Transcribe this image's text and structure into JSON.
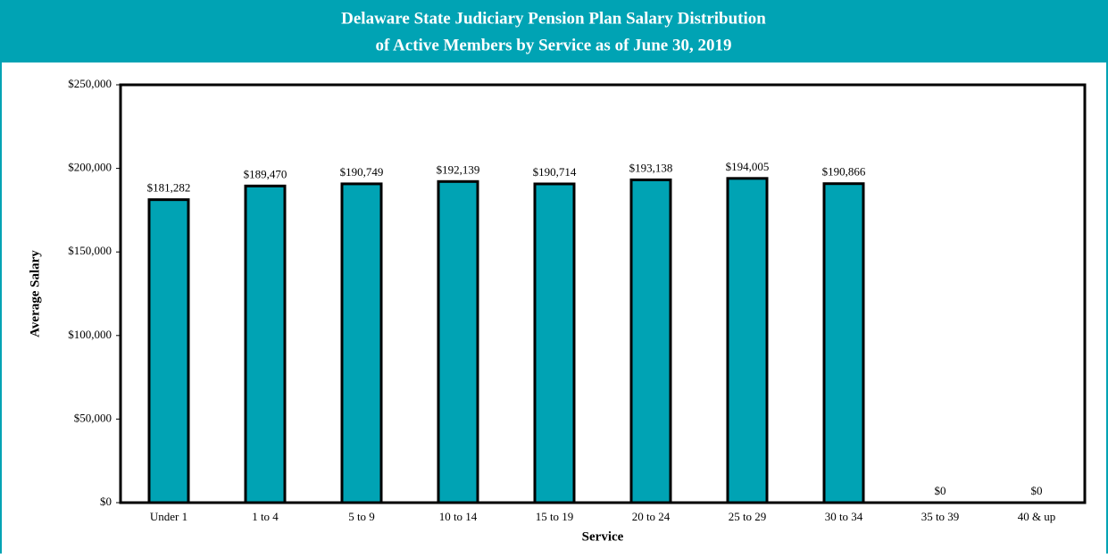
{
  "chart_data": {
    "type": "bar",
    "title": [
      "Delaware State Judiciary Pension Plan Salary Distribution",
      "of Active Members by Service as of June 30, 2019"
    ],
    "x_label": "Service",
    "y_label": "Average Salary",
    "categories": [
      "Under 1",
      "1 to 4",
      "5 to 9",
      "10 to 14",
      "15 to 19",
      "20 to 24",
      "25 to 29",
      "30 to 34",
      "35 to 39",
      "40 & up"
    ],
    "values": [
      181282,
      189470,
      190749,
      192139,
      190714,
      193138,
      194005,
      190866,
      0,
      0
    ],
    "value_labels": [
      "$181,282",
      "$189,470",
      "$190,749",
      "$192,139",
      "$190,714",
      "$193,138",
      "$194,005",
      "$190,866",
      "$0",
      "$0"
    ],
    "color": "#00a3b4",
    "ylim": [
      0,
      250000
    ],
    "yticks": [
      {
        "value": 0,
        "label": "$0"
      },
      {
        "value": 50000,
        "label": "$50,000"
      },
      {
        "value": 100000,
        "label": "$100,000"
      },
      {
        "value": 150000,
        "label": "$150,000"
      },
      {
        "value": 200000,
        "label": "$200,000"
      },
      {
        "value": 250000,
        "label": "$250,000"
      }
    ]
  }
}
